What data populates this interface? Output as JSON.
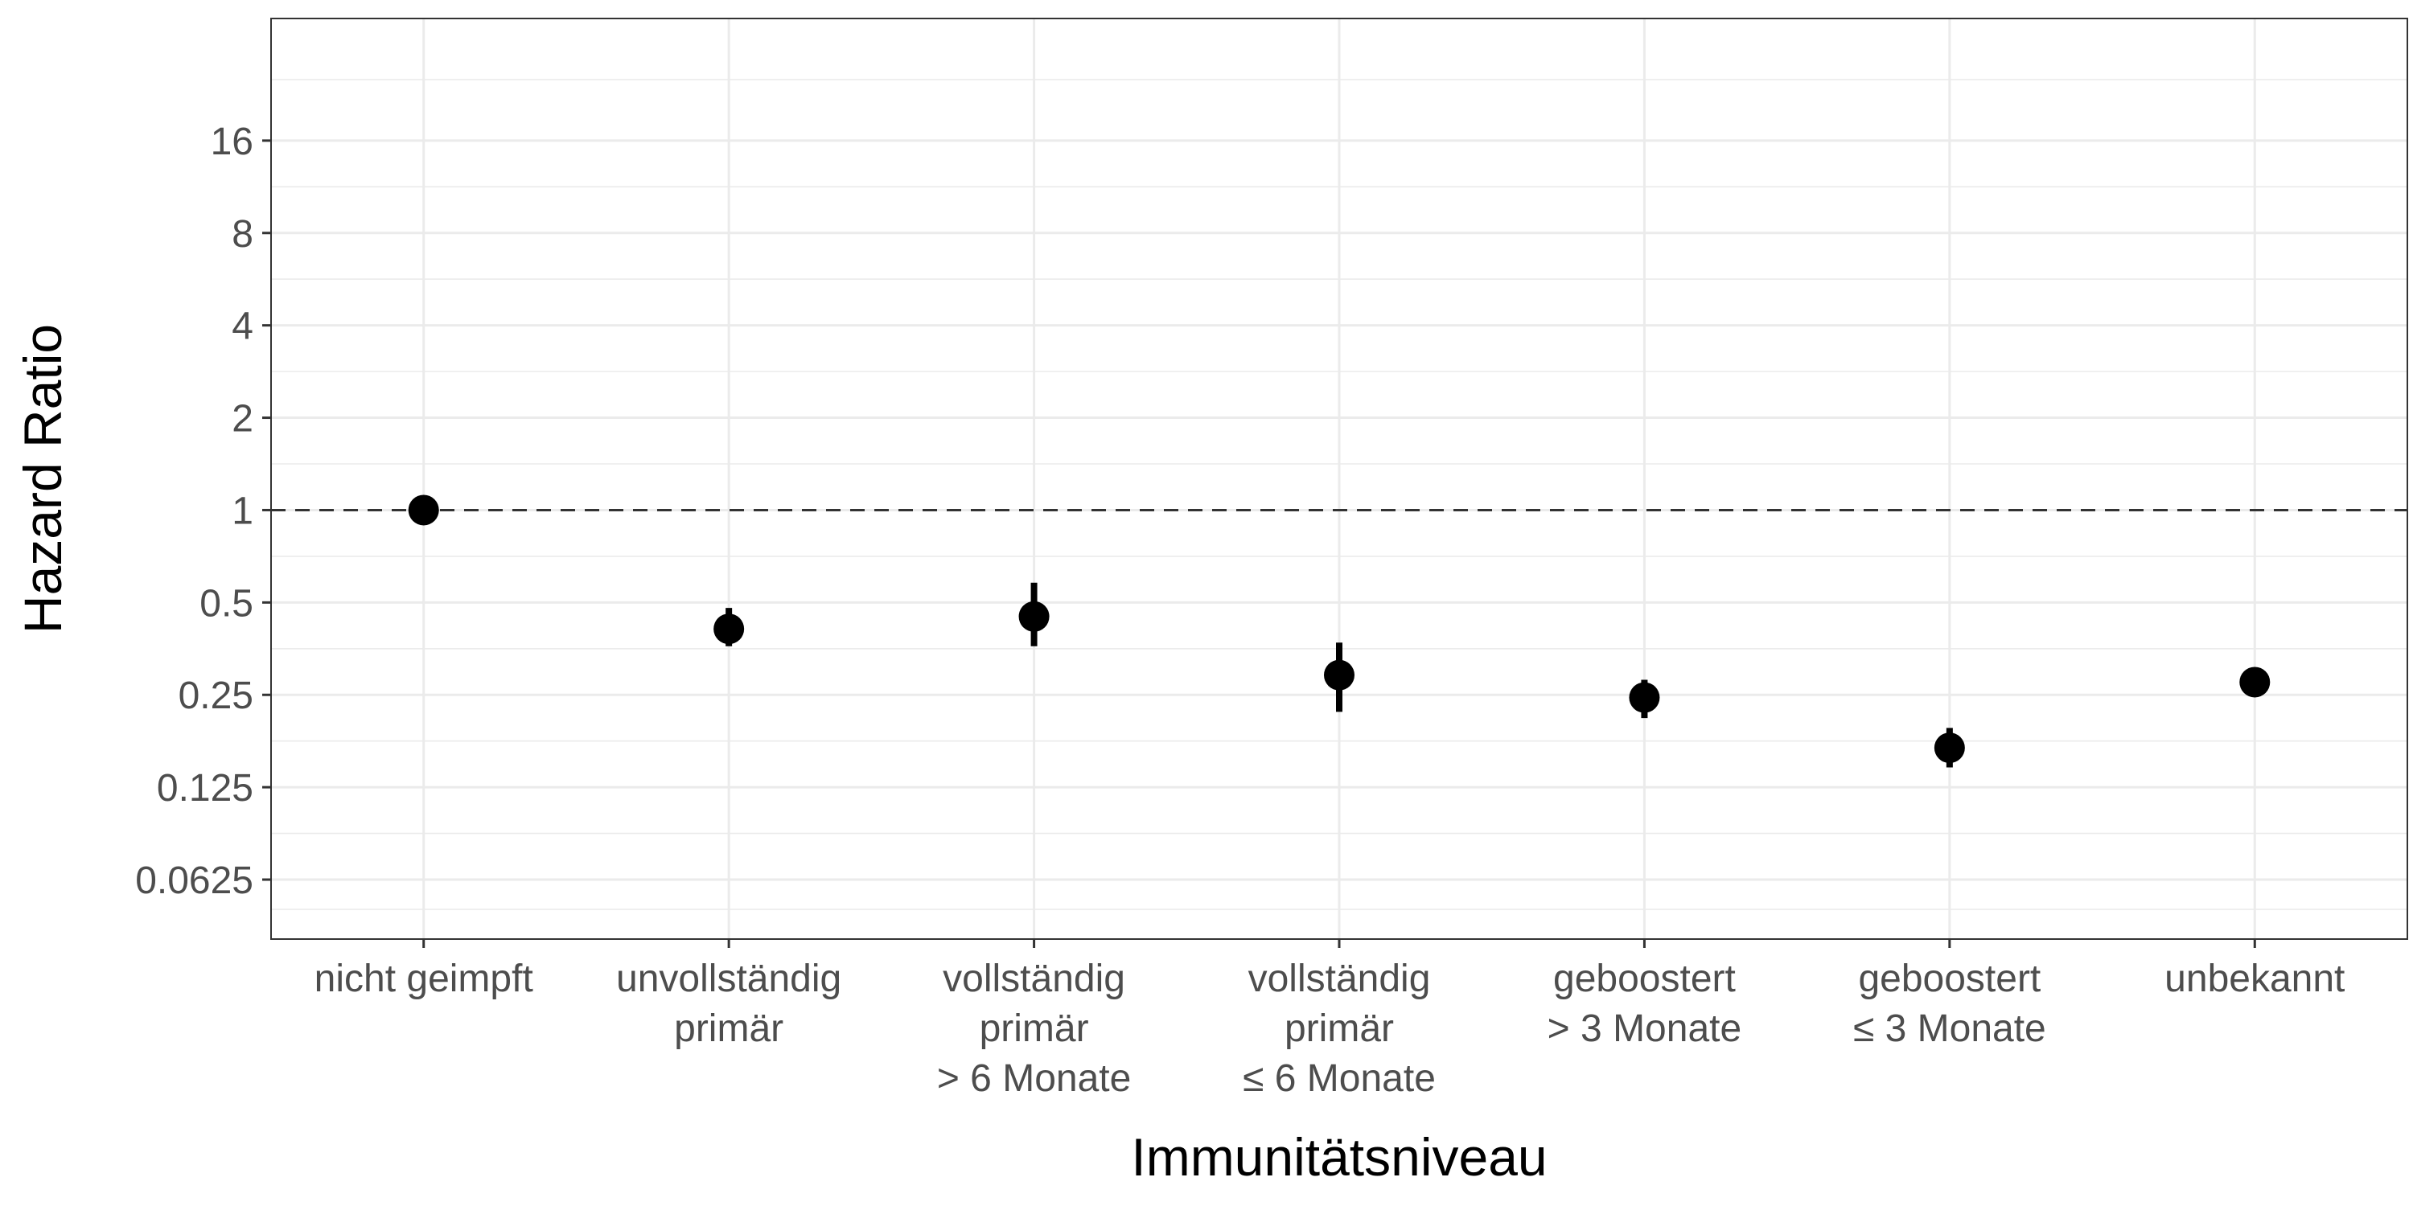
{
  "chart_data": {
    "type": "scatter",
    "subtype": "point-range",
    "title": "",
    "xlabel": "Immunitätsniveau",
    "ylabel": "Hazard Ratio",
    "y_scale": "log2",
    "ylim": [
      0.04,
      40
    ],
    "y_ticks": [
      0.0625,
      0.125,
      0.25,
      0.5,
      1,
      2,
      4,
      8,
      16
    ],
    "y_tick_labels": [
      "0.0625",
      "0.125",
      "0.25",
      "0.5",
      "1",
      "2",
      "4",
      "8",
      "16"
    ],
    "reference_line": {
      "y": 1,
      "style": "dashed"
    },
    "grid": true,
    "legend": "none",
    "categories": [
      [
        "nicht geimpft"
      ],
      [
        "unvollständig",
        "primär"
      ],
      [
        "vollständig",
        "primär",
        "> 6 Monate"
      ],
      [
        "vollständig",
        "primär",
        "≤ 6 Monate"
      ],
      [
        "geboostert",
        "> 3 Monate"
      ],
      [
        "geboostert",
        "≤ 3 Monate"
      ],
      [
        "unbekannt"
      ]
    ],
    "points": [
      {
        "hr": 1.0,
        "lower": null,
        "upper": null
      },
      {
        "hr": 0.41,
        "lower": 0.36,
        "upper": 0.48
      },
      {
        "hr": 0.45,
        "lower": 0.36,
        "upper": 0.58
      },
      {
        "hr": 0.29,
        "lower": 0.22,
        "upper": 0.37
      },
      {
        "hr": 0.245,
        "lower": 0.21,
        "upper": 0.28
      },
      {
        "hr": 0.168,
        "lower": 0.145,
        "upper": 0.195
      },
      {
        "hr": 0.275,
        "lower": null,
        "upper": null
      }
    ],
    "colors": {
      "panel_border": "#333333",
      "grid": "#ebebeb",
      "point": "#000000",
      "reference_line": "#333333",
      "tick_text": "#4d4d4d"
    }
  }
}
